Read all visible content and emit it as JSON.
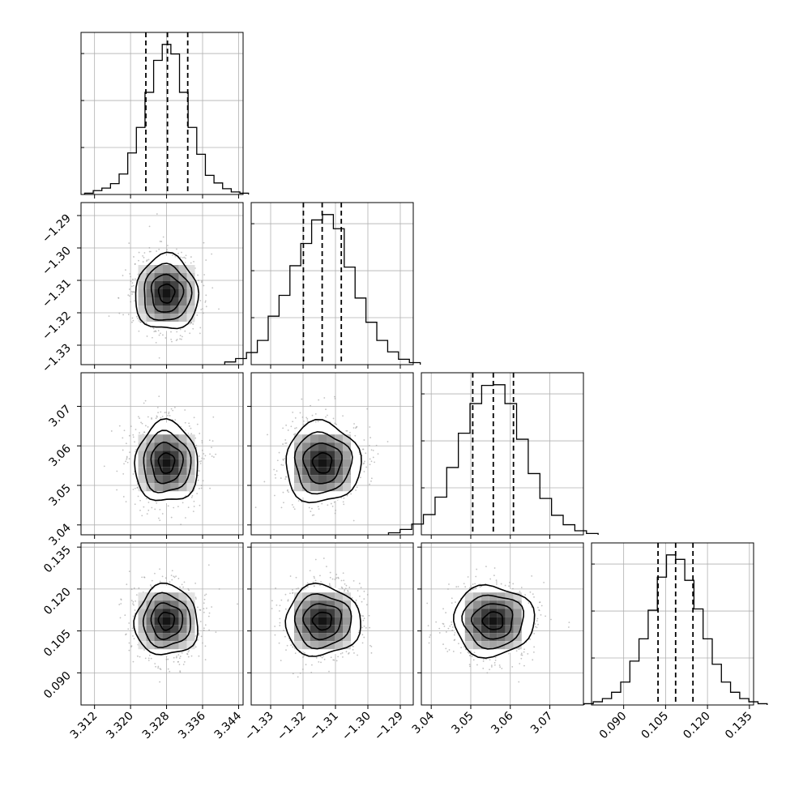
{
  "chart_data": {
    "type": "corner",
    "parameters": [
      {
        "lim": [
          3.309,
          3.345
        ],
        "ticks": [
          "3.312",
          "3.320",
          "3.328",
          "3.336",
          "3.344"
        ],
        "quantiles": [
          3.3234,
          3.3282,
          3.3327
        ],
        "mean": 3.328,
        "sd": 0.0035,
        "hist": [
          0.2,
          0.6,
          1.0,
          1.7,
          3.2,
          6.5,
          10.5,
          16.0,
          21.0,
          23.5,
          22.0,
          16.0,
          10.5,
          6.3,
          3.0,
          1.8,
          0.9,
          0.4,
          0.2
        ]
      },
      {
        "lim": [
          -1.336,
          -1.286
        ],
        "ticks": [
          "-1.33",
          "-1.32",
          "-1.31",
          "-1.30",
          "-1.29"
        ],
        "quantiles": [
          -1.3199,
          -1.3141,
          -1.3082
        ],
        "mean": -1.314,
        "sd": 0.0058,
        "hist": [
          0.4,
          0.9,
          1.8,
          3.6,
          7.2,
          10.3,
          14.7,
          18.0,
          21.5,
          22.3,
          20.2,
          14.5,
          9.9,
          6.3,
          3.6,
          1.9,
          0.8,
          0.3
        ]
      },
      {
        "lim": [
          3.0375,
          3.0785
        ],
        "ticks": [
          "3.04",
          "3.05",
          "3.06",
          "3.07"
        ],
        "quantiles": [
          3.0505,
          3.0557,
          3.0608
        ],
        "mean": 3.0557,
        "sd": 0.0051,
        "hist": [
          0.3,
          0.8,
          1.6,
          3.0,
          5.6,
          10.0,
          15.1,
          19.5,
          22.2,
          22.3,
          19.5,
          14.2,
          9.1,
          5.4,
          2.9,
          1.5,
          0.6,
          0.2
        ]
      },
      {
        "lim": [
          0.0785,
          0.1365
        ],
        "ticks": [
          "0.090",
          "0.105",
          "0.120",
          "0.135"
        ],
        "quantiles": [
          0.1023,
          0.1086,
          0.1148
        ],
        "mean": 0.1086,
        "sd": 0.0063,
        "hist": [
          0.2,
          0.5,
          1.0,
          2.0,
          3.6,
          6.9,
          10.4,
          14.9,
          20.1,
          23.6,
          22.9,
          19.6,
          15.1,
          10.4,
          6.4,
          3.6,
          2.0,
          1.0,
          0.5,
          0.2
        ]
      }
    ],
    "contour_levels": [
      0.12,
      0.39,
      0.68,
      0.86
    ],
    "quantile_style": "dashed",
    "grid": true,
    "xlabel": "",
    "ylabel": ""
  }
}
